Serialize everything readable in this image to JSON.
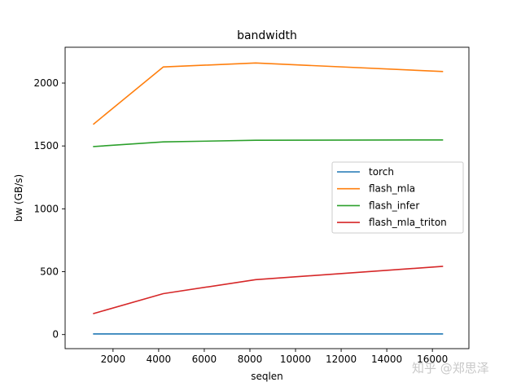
{
  "chart_data": {
    "type": "line",
    "title": "bandwidth",
    "xlabel": "seqlen",
    "ylabel": "bw (GB/s)",
    "x": [
      1151,
      4199,
      8249,
      16441
    ],
    "xlim": [
      -100,
      17600
    ],
    "ylim": [
      -112,
      2285
    ],
    "xticks": [
      2000,
      4000,
      6000,
      8000,
      10000,
      12000,
      14000,
      16000
    ],
    "yticks": [
      0,
      500,
      1000,
      1500,
      2000
    ],
    "grid": false,
    "legend_position": "center-right",
    "series": [
      {
        "name": "torch",
        "color": "#1f77b4",
        "values": [
          5,
          5,
          5,
          5
        ]
      },
      {
        "name": "flash_mla",
        "color": "#ff7f0e",
        "values": [
          1675,
          2128,
          2160,
          2092
        ]
      },
      {
        "name": "flash_infer",
        "color": "#2ca02c",
        "values": [
          1495,
          1532,
          1545,
          1548
        ]
      },
      {
        "name": "flash_mla_triton",
        "color": "#d62728",
        "values": [
          167,
          325,
          437,
          542
        ]
      }
    ]
  },
  "watermark": "知乎 @郑思泽"
}
